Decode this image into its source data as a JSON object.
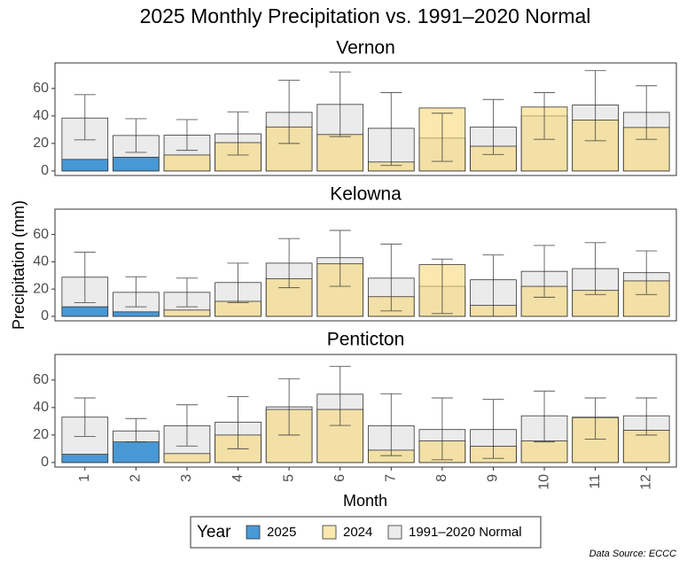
{
  "title": "2025  Monthly Precipitation vs. 1991–2020 Normal",
  "xlabel": "Month",
  "ylabel": "Precipitation (mm)",
  "legend_title": "Year",
  "source": "Data Source: ECCC",
  "chart_data": [
    {
      "type": "bar",
      "title": "Vernon",
      "categories": [
        "1",
        "2",
        "3",
        "4",
        "5",
        "6",
        "7",
        "8",
        "9",
        "10",
        "11",
        "12"
      ],
      "ylim": [
        -3.3,
        78.6
      ],
      "yticks": [
        0,
        20,
        40,
        60
      ],
      "series": [
        {
          "name": "2025",
          "color": "#3f94d4",
          "values": [
            8.4,
            10,
            null,
            null,
            null,
            null,
            null,
            null,
            null,
            null,
            null,
            null
          ]
        },
        {
          "name": "2024",
          "color": "#f7d978",
          "values": [
            null,
            null,
            11.6,
            20.6,
            32,
            26.5,
            6.5,
            45.8,
            18,
            46.5,
            37,
            31.6
          ]
        },
        {
          "name": "1991–2020 Normal",
          "color": "#ebebeb",
          "values": [
            38.5,
            25.8,
            26,
            27,
            42.6,
            48.4,
            31,
            23.9,
            32,
            40,
            48,
            42.6
          ],
          "error_low": [
            22.6,
            13.5,
            15,
            11.6,
            20,
            25,
            4,
            7,
            12,
            23,
            22,
            23
          ],
          "error_high": [
            55.5,
            38,
            37.4,
            43,
            66,
            72,
            57,
            42,
            52,
            57,
            73,
            62
          ]
        }
      ]
    },
    {
      "type": "bar",
      "title": "Kelowna",
      "categories": [
        "1",
        "2",
        "3",
        "4",
        "5",
        "6",
        "7",
        "8",
        "9",
        "10",
        "11",
        "12"
      ],
      "ylim": [
        -3.3,
        78.6
      ],
      "yticks": [
        0,
        20,
        40,
        60
      ],
      "series": [
        {
          "name": "2025",
          "color": "#3f94d4",
          "values": [
            7,
            3.3,
            null,
            null,
            null,
            null,
            null,
            null,
            null,
            null,
            null,
            null
          ]
        },
        {
          "name": "2024",
          "color": "#f7d978",
          "values": [
            null,
            null,
            4.6,
            11,
            27.5,
            38.5,
            14.4,
            37.9,
            8,
            22,
            19,
            26
          ]
        },
        {
          "name": "1991–2020 Normal",
          "color": "#ebebeb",
          "values": [
            28.7,
            17.6,
            17.6,
            24.8,
            39,
            43,
            28,
            22,
            26.8,
            33,
            35,
            32
          ],
          "error_low": [
            10,
            7,
            7,
            10,
            21,
            22,
            4,
            2,
            0,
            14,
            16,
            16
          ],
          "error_high": [
            47,
            29,
            28,
            39,
            57,
            63,
            53,
            42,
            45,
            52,
            54,
            48
          ]
        }
      ]
    },
    {
      "type": "bar",
      "title": "Penticton",
      "categories": [
        "1",
        "2",
        "3",
        "4",
        "5",
        "6",
        "7",
        "8",
        "9",
        "10",
        "11",
        "12"
      ],
      "ylim": [
        -3.3,
        78.6
      ],
      "yticks": [
        0,
        20,
        40,
        60
      ],
      "series": [
        {
          "name": "2025",
          "color": "#3f94d4",
          "values": [
            6,
            15,
            null,
            null,
            null,
            null,
            null,
            null,
            null,
            null,
            null,
            null
          ]
        },
        {
          "name": "2024",
          "color": "#f7d978",
          "values": [
            null,
            null,
            6.5,
            20,
            38.6,
            38.6,
            9,
            15.7,
            11.8,
            15.7,
            32.7,
            23.5
          ]
        },
        {
          "name": "1991–2020 Normal",
          "color": "#ebebeb",
          "values": [
            33,
            23,
            26.8,
            29.4,
            40.5,
            49.7,
            26.8,
            24,
            24,
            34,
            33,
            34
          ],
          "error_low": [
            19,
            15,
            12,
            10,
            20,
            27,
            5,
            2,
            3,
            15,
            17,
            20
          ],
          "error_high": [
            47,
            32,
            42,
            48,
            61,
            70,
            50,
            47,
            46,
            52,
            47,
            47
          ]
        }
      ]
    }
  ]
}
